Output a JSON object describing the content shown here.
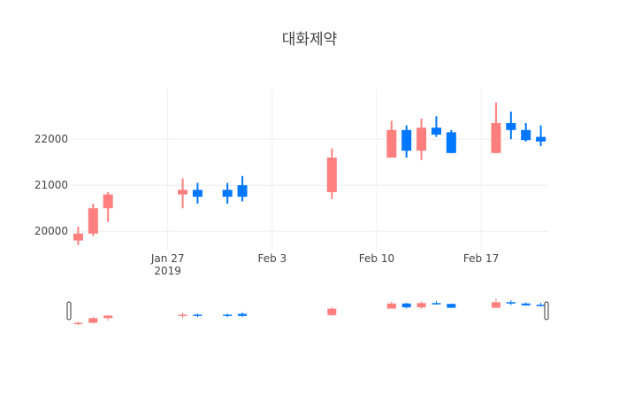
{
  "chart_data": {
    "type": "candlestick",
    "title": "대화제약",
    "xlabel": "",
    "ylabel": "",
    "x_range": [
      "2019-01-21",
      "2019-02-21"
    ],
    "ylim": [
      19600,
      23100
    ],
    "y_ticks": [
      20000,
      21000,
      22000
    ],
    "x_ticks": [
      {
        "date": "2019-01-27",
        "label": "Jan 27",
        "sublabel": "2019"
      },
      {
        "date": "2019-02-03",
        "label": "Feb 3",
        "sublabel": ""
      },
      {
        "date": "2019-02-10",
        "label": "Feb 10",
        "sublabel": ""
      },
      {
        "date": "2019-02-17",
        "label": "Feb 17",
        "sublabel": ""
      }
    ],
    "grid": true,
    "rangeslider": true,
    "increasing_color": "#ff7f7f",
    "decreasing_color": "#0077ff",
    "candles": [
      {
        "date": "2019-01-21",
        "open": 19800,
        "high": 20100,
        "low": 19700,
        "close": 19950
      },
      {
        "date": "2019-01-22",
        "open": 19950,
        "high": 20600,
        "low": 19900,
        "close": 20500
      },
      {
        "date": "2019-01-23",
        "open": 20500,
        "high": 20850,
        "low": 20200,
        "close": 20800
      },
      {
        "date": "2019-01-28",
        "open": 20800,
        "high": 21150,
        "low": 20500,
        "close": 20900
      },
      {
        "date": "2019-01-29",
        "open": 20900,
        "high": 21050,
        "low": 20600,
        "close": 20750
      },
      {
        "date": "2019-01-31",
        "open": 20900,
        "high": 21050,
        "low": 20600,
        "close": 20750
      },
      {
        "date": "2019-02-01",
        "open": 21000,
        "high": 21200,
        "low": 20650,
        "close": 20750
      },
      {
        "date": "2019-02-07",
        "open": 20850,
        "high": 21800,
        "low": 20700,
        "close": 21600
      },
      {
        "date": "2019-02-11",
        "open": 21600,
        "high": 22400,
        "low": 21600,
        "close": 22200
      },
      {
        "date": "2019-02-12",
        "open": 22200,
        "high": 22300,
        "low": 21600,
        "close": 21750
      },
      {
        "date": "2019-02-13",
        "open": 21750,
        "high": 22450,
        "low": 21550,
        "close": 22250
      },
      {
        "date": "2019-02-14",
        "open": 22250,
        "high": 22500,
        "low": 22050,
        "close": 22100
      },
      {
        "date": "2019-02-15",
        "open": 22150,
        "high": 22200,
        "low": 21700,
        "close": 21700
      },
      {
        "date": "2019-02-18",
        "open": 21700,
        "high": 22800,
        "low": 21700,
        "close": 22350
      },
      {
        "date": "2019-02-19",
        "open": 22350,
        "high": 22600,
        "low": 22000,
        "close": 22200
      },
      {
        "date": "2019-02-20",
        "open": 22200,
        "high": 22350,
        "low": 21950,
        "close": 21980
      },
      {
        "date": "2019-02-21",
        "open": 22050,
        "high": 22300,
        "low": 21850,
        "close": 21950
      }
    ]
  }
}
